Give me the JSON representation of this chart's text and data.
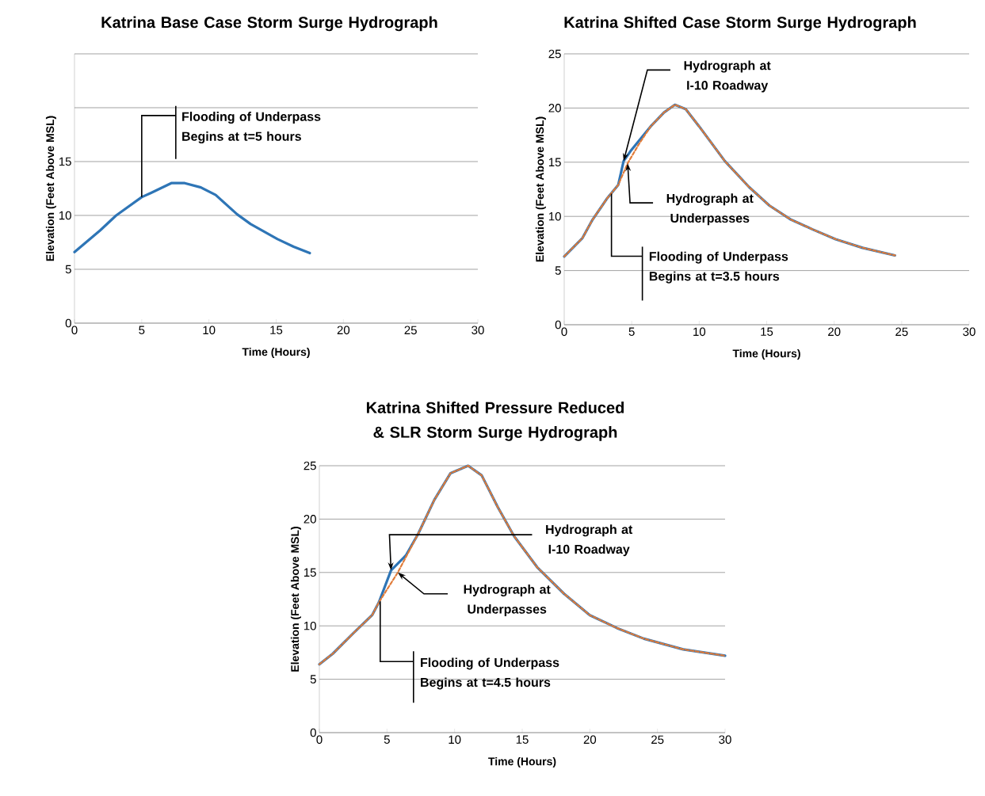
{
  "chart_data": [
    {
      "type": "line",
      "title": "Katrina Base Case Storm Surge Hydrograph",
      "xlabel": "Time (Hours)",
      "ylabel": "Elevation (Feet Above MSL)",
      "xlim": [
        0,
        30
      ],
      "xticks": [
        0,
        5,
        10,
        15,
        20,
        25,
        30
      ],
      "ylim": [
        0,
        25
      ],
      "yticks": [
        0,
        5,
        10,
        15,
        {
          "value": 20,
          "label": null
        },
        {
          "value": 25,
          "label": null
        }
      ],
      "grid": "y",
      "series": [
        {
          "color": "#2e75b6",
          "line_style": "solid",
          "x": [
            0,
            1.9,
            3.1,
            5.0,
            5.7,
            7.2,
            8.2,
            9.4,
            10.5,
            12.1,
            13.1,
            15.1,
            16.3,
            17.5
          ],
          "values": [
            6.6,
            8.6,
            10.0,
            11.7,
            12.1,
            13.0,
            13.0,
            12.6,
            11.9,
            10.1,
            9.2,
            7.8,
            7.1,
            6.5
          ]
        }
      ],
      "annotations": [
        {
          "text": "Flooding of Underpass Begins at t=5 hours",
          "x": 5,
          "y": 11.7
        }
      ]
    },
    {
      "type": "line",
      "title": "Katrina Shifted Case Storm Surge Hydrograph",
      "xlabel": "Time (Hours)",
      "ylabel": "Elevation (Feet Above MSL)",
      "xlim": [
        0,
        30
      ],
      "xticks": [
        0,
        5,
        10,
        15,
        20,
        25,
        30
      ],
      "ylim": [
        0,
        25
      ],
      "yticks": [
        0,
        5,
        10,
        15,
        20,
        25
      ],
      "grid": "y",
      "series": [
        {
          "color": "#2e75b6",
          "line_style": "solid",
          "x": [
            0,
            1.35,
            2.1,
            3.2,
            4.0,
            4.4,
            4.9,
            6.4,
            7.4,
            8.2,
            9.0,
            10.0,
            11.9,
            13.7,
            15.2,
            16.8,
            18.4,
            20.1,
            22.1,
            24.5
          ],
          "values": [
            6.3,
            8.0,
            9.7,
            11.7,
            12.9,
            15.1,
            16.0,
            18.3,
            19.6,
            20.3,
            19.9,
            18.3,
            15.1,
            12.7,
            11.0,
            9.7,
            8.8,
            7.9,
            7.1,
            6.4
          ]
        },
        {
          "color": "#e07b39",
          "line_style": "dashed",
          "x": [
            0,
            1.35,
            2.1,
            3.2,
            4.0,
            4.7,
            5.5,
            6.4,
            7.4,
            8.2,
            9.0,
            10.0,
            11.9,
            13.7,
            15.2,
            16.8,
            18.4,
            20.1,
            22.1,
            24.5
          ],
          "values": [
            6.3,
            8.0,
            9.7,
            11.7,
            12.9,
            14.9,
            16.6,
            18.3,
            19.6,
            20.3,
            19.9,
            18.3,
            15.1,
            12.7,
            11.0,
            9.7,
            8.8,
            7.9,
            7.1,
            6.4
          ]
        }
      ],
      "annotations": [
        {
          "text": "Flooding of Underpass Begins at t=3.5 hours",
          "x": 3.5,
          "y": 12.1
        },
        {
          "text": "Hydrograph at I-10 Roadway",
          "x": 4.4,
          "y": 15.1
        },
        {
          "text": "Hydrograph at Underpasses",
          "x": 4.7,
          "y": 14.9
        }
      ]
    },
    {
      "type": "line",
      "title": "Katrina Shifted Pressure Reduced & SLR Storm Surge Hydrograph",
      "xlabel": "Time (Hours)",
      "ylabel": "Elevation (Feet Above MSL)",
      "xlim": [
        0,
        30
      ],
      "xticks": [
        0,
        5,
        10,
        15,
        20,
        25,
        30
      ],
      "ylim": [
        0,
        25
      ],
      "yticks": [
        0,
        5,
        10,
        15,
        20,
        25
      ],
      "grid": "y",
      "series": [
        {
          "color": "#2e75b6",
          "line_style": "solid",
          "x": [
            0,
            1.0,
            2.5,
            3.9,
            4.4,
            5.3,
            6.4,
            7.3,
            8.5,
            9.7,
            11.0,
            12.0,
            13.2,
            14.4,
            16.1,
            18.1,
            20.0,
            22.0,
            24.0,
            26.9,
            30
          ],
          "values": [
            6.4,
            7.4,
            9.3,
            11.0,
            12.2,
            15.2,
            16.6,
            18.6,
            21.8,
            24.3,
            25.0,
            24.1,
            21.1,
            18.4,
            15.5,
            13.0,
            11.0,
            9.8,
            8.8,
            7.8,
            7.2
          ]
        },
        {
          "color": "#e07b39",
          "line_style": "dashed",
          "x": [
            0,
            1.0,
            2.5,
            3.9,
            4.4,
            5.8,
            7.3,
            8.5,
            9.7,
            11.0,
            12.0,
            13.2,
            14.4,
            16.1,
            18.1,
            20.0,
            22.0,
            24.0,
            26.9,
            30
          ],
          "values": [
            6.4,
            7.4,
            9.3,
            11.0,
            12.2,
            15.0,
            18.6,
            21.8,
            24.3,
            25.0,
            24.1,
            21.1,
            18.4,
            15.5,
            13.0,
            11.0,
            9.8,
            8.8,
            7.8,
            7.2
          ]
        }
      ],
      "annotations": [
        {
          "text": "Flooding of Underpass Begins at t=4.5 hours",
          "x": 4.5,
          "y": 12.3
        },
        {
          "text": "Hydrograph at I-10 Roadway",
          "x": 5.3,
          "y": 15.2
        },
        {
          "text": "Hydrograph at Underpasses",
          "x": 5.8,
          "y": 15.0
        }
      ]
    }
  ]
}
